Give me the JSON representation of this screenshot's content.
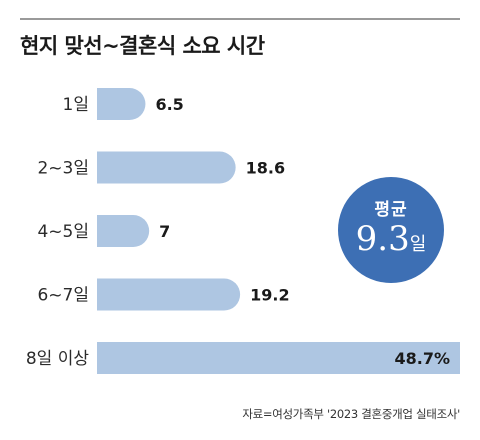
{
  "title": "현지 맞선~결혼식 소요 시간",
  "source": "자료=여성가족부 '2023 결혼중개업 실태조사'",
  "badge": {
    "label": "평균",
    "value": "9.3",
    "unit": "일"
  },
  "colors": {
    "bar": "#aec6e2",
    "badge": "#3d6fb4"
  },
  "chart_data": {
    "type": "bar",
    "orientation": "horizontal",
    "categories": [
      "1일",
      "2~3일",
      "4~5일",
      "6~7일",
      "8일 이상"
    ],
    "values": [
      6.5,
      18.6,
      7,
      19.2,
      48.7
    ],
    "value_labels": [
      "6.5",
      "18.6",
      "7",
      "19.2",
      "48.7%"
    ],
    "xlim": [
      0,
      48.7
    ],
    "grid": false,
    "legend": "none"
  }
}
